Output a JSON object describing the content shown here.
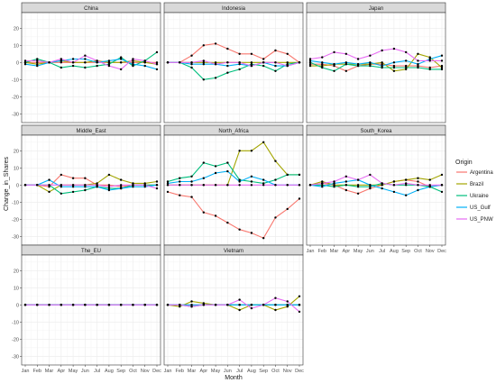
{
  "chart_data": {
    "type": "line",
    "xlabel": "Month",
    "ylabel": "Change_in_Shares",
    "ylim": [
      -33,
      27
    ],
    "yticks": [
      -30,
      -20,
      -10,
      0,
      10,
      20
    ],
    "categories": [
      "Jan",
      "Feb",
      "Mar",
      "Apr",
      "May",
      "Jun",
      "Jul",
      "Aug",
      "Sep",
      "Oct",
      "Nov",
      "Dec"
    ],
    "legend": {
      "title": "Origin",
      "placement": "right",
      "entries": [
        {
          "name": "Argentina",
          "color": "#F8766D"
        },
        {
          "name": "Brazil",
          "color": "#A3A500"
        },
        {
          "name": "Ukraine",
          "color": "#00BF7D"
        },
        {
          "name": "US_Gulf",
          "color": "#00B0F6"
        },
        {
          "name": "US_PNW",
          "color": "#E76BF3"
        }
      ]
    },
    "panels": [
      {
        "title": "China",
        "series": [
          {
            "name": "Argentina",
            "values": [
              0,
              0,
              0,
              0,
              0,
              0,
              0,
              0,
              0,
              0,
              0,
              0
            ]
          },
          {
            "name": "Brazil",
            "values": [
              0,
              -1,
              0,
              1,
              0,
              0,
              1,
              0,
              0,
              1,
              0,
              -1
            ]
          },
          {
            "name": "Ukraine",
            "values": [
              0,
              2,
              0,
              -3,
              -2,
              -3,
              -2,
              -1,
              3,
              -2,
              1,
              6
            ]
          },
          {
            "name": "US_Gulf",
            "values": [
              -1,
              -2,
              0,
              1,
              2,
              2,
              0,
              1,
              2,
              -1,
              -2,
              -4
            ]
          },
          {
            "name": "US_PNW",
            "values": [
              1,
              1,
              0,
              2,
              0,
              4,
              1,
              -2,
              -4,
              2,
              1,
              -1
            ]
          }
        ]
      },
      {
        "title": "Indonesia",
        "series": [
          {
            "name": "Argentina",
            "values": [
              0,
              0,
              4,
              10,
              11,
              8,
              5,
              5,
              2,
              7,
              5,
              0
            ]
          },
          {
            "name": "Brazil",
            "values": [
              0,
              0,
              0,
              0,
              0,
              0,
              0,
              0,
              0,
              0,
              0,
              0
            ]
          },
          {
            "name": "Ukraine",
            "values": [
              0,
              0,
              -3,
              -10,
              -9,
              -6,
              -4,
              -1,
              -2,
              -5,
              -1,
              0
            ]
          },
          {
            "name": "US_Gulf",
            "values": [
              0,
              0,
              -1,
              -1,
              -1,
              -2,
              -1,
              -2,
              0,
              -2,
              -2,
              0
            ]
          },
          {
            "name": "US_PNW",
            "values": [
              0,
              0,
              0,
              1,
              -1,
              0,
              0,
              -2,
              0,
              0,
              -2,
              0
            ]
          }
        ]
      },
      {
        "title": "Japan",
        "series": [
          {
            "name": "Argentina",
            "values": [
              -1,
              -1,
              -2,
              -5,
              -2,
              -1,
              -1,
              -2,
              -2,
              -2,
              -3,
              -2
            ]
          },
          {
            "name": "Brazil",
            "values": [
              -2,
              -2,
              -1,
              -1,
              -1,
              -1,
              0,
              -5,
              -4,
              5,
              3,
              -3
            ]
          },
          {
            "name": "Ukraine",
            "values": [
              0,
              -3,
              -5,
              -1,
              -2,
              -2,
              -3,
              -3,
              -3,
              -3,
              -4,
              -4
            ]
          },
          {
            "name": "US_Gulf",
            "values": [
              1,
              0,
              -1,
              0,
              -1,
              0,
              -2,
              0,
              1,
              -1,
              2,
              4
            ]
          },
          {
            "name": "US_PNW",
            "values": [
              2,
              3,
              6,
              5,
              2,
              4,
              7,
              8,
              6,
              1,
              1,
              1
            ]
          }
        ]
      },
      {
        "title": "Middle_East",
        "series": [
          {
            "name": "Argentina",
            "values": [
              0,
              0,
              -1,
              6,
              4,
              4,
              0,
              0,
              -1,
              0,
              0,
              0
            ]
          },
          {
            "name": "Brazil",
            "values": [
              0,
              0,
              -4,
              0,
              0,
              0,
              1,
              6,
              3,
              1,
              1,
              2
            ]
          },
          {
            "name": "Ukraine",
            "values": [
              0,
              0,
              0,
              -5,
              -4,
              -3,
              -1,
              -2,
              -2,
              0,
              0,
              0
            ]
          },
          {
            "name": "US_Gulf",
            "values": [
              0,
              0,
              3,
              -1,
              -1,
              -1,
              -1,
              -3,
              -2,
              -1,
              -1,
              0
            ]
          },
          {
            "name": "US_PNW",
            "values": [
              0,
              0,
              0,
              0,
              0,
              0,
              0,
              -1,
              0,
              0,
              0,
              -2
            ]
          }
        ]
      },
      {
        "title": "North_Africa",
        "series": [
          {
            "name": "Argentina",
            "values": [
              -4,
              -6,
              -7,
              -16,
              -18,
              -22,
              -26,
              -28,
              -31,
              -19,
              -14,
              -8
            ]
          },
          {
            "name": "Brazil",
            "values": [
              0,
              0,
              0,
              0,
              0,
              0,
              20,
              20,
              25,
              14,
              6,
              6
            ]
          },
          {
            "name": "Ukraine",
            "values": [
              2,
              4,
              5,
              13,
              11,
              13,
              3,
              2,
              1,
              3,
              6,
              6
            ]
          },
          {
            "name": "US_Gulf",
            "values": [
              1,
              2,
              2,
              4,
              7,
              8,
              2,
              5,
              3,
              0,
              0,
              0
            ]
          },
          {
            "name": "US_PNW",
            "values": [
              0,
              0,
              0,
              0,
              0,
              0,
              0,
              0,
              0,
              0,
              0,
              0
            ]
          }
        ]
      },
      {
        "title": "South_Korea",
        "series": [
          {
            "name": "Argentina",
            "values": [
              0,
              1,
              0,
              -3,
              -5,
              -2,
              0,
              2,
              3,
              2,
              -1,
              0
            ]
          },
          {
            "name": "Brazil",
            "values": [
              0,
              2,
              0,
              0,
              0,
              0,
              0,
              2,
              3,
              4,
              3,
              6
            ]
          },
          {
            "name": "Ukraine",
            "values": [
              0,
              0,
              -1,
              0,
              -1,
              -1,
              1,
              0,
              0,
              0,
              -1,
              -4
            ]
          },
          {
            "name": "US_Gulf",
            "values": [
              0,
              -1,
              1,
              2,
              3,
              0,
              -2,
              -4,
              -6,
              -3,
              -1,
              0
            ]
          },
          {
            "name": "US_PNW",
            "values": [
              0,
              1,
              2,
              5,
              3,
              6,
              1,
              0,
              1,
              0,
              0,
              0
            ]
          }
        ]
      },
      {
        "title": "The_EU",
        "series": [
          {
            "name": "Argentina",
            "values": [
              0,
              0,
              0,
              0,
              0,
              0,
              0,
              0,
              0,
              0,
              0,
              0
            ]
          },
          {
            "name": "Brazil",
            "values": [
              0,
              0,
              0,
              0,
              0,
              0,
              0,
              0,
              0,
              0,
              0,
              0
            ]
          },
          {
            "name": "Ukraine",
            "values": [
              0,
              0,
              0,
              0,
              0,
              0,
              0,
              0,
              0,
              0,
              0,
              0
            ]
          },
          {
            "name": "US_Gulf",
            "values": [
              0,
              0,
              0,
              0,
              0,
              0,
              0,
              0,
              0,
              0,
              0,
              0
            ]
          },
          {
            "name": "US_PNW",
            "values": [
              0,
              0,
              0,
              0,
              0,
              0,
              0,
              0,
              0,
              0,
              0,
              0
            ]
          }
        ]
      },
      {
        "title": "Vietnam",
        "series": [
          {
            "name": "Argentina",
            "values": [
              0,
              0,
              0,
              0,
              0,
              0,
              0,
              0,
              0,
              0,
              0,
              0
            ]
          },
          {
            "name": "Brazil",
            "values": [
              0,
              -1,
              2,
              1,
              0,
              0,
              -3,
              0,
              0,
              -3,
              -1,
              5
            ]
          },
          {
            "name": "Ukraine",
            "values": [
              0,
              0,
              -1,
              0,
              0,
              0,
              0,
              0,
              0,
              0,
              0,
              0
            ]
          },
          {
            "name": "US_Gulf",
            "values": [
              0,
              0,
              0,
              0,
              0,
              0,
              0,
              0,
              0,
              0,
              0,
              0
            ]
          },
          {
            "name": "US_PNW",
            "values": [
              0,
              0,
              -1,
              0,
              0,
              0,
              3,
              -2,
              0,
              4,
              2,
              -4
            ]
          }
        ]
      }
    ]
  }
}
